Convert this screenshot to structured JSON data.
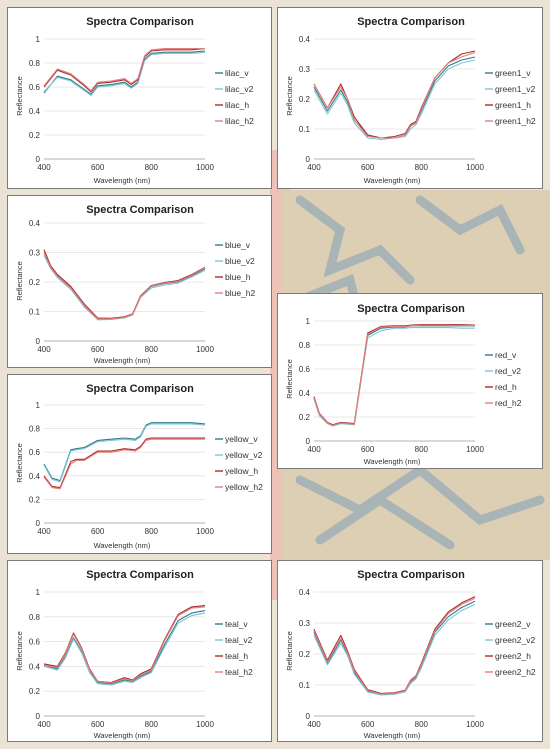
{
  "colors": {
    "v": "#2c7b8a",
    "v2": "#7fc4d8",
    "h": "#b02a2a",
    "h2": "#e0807a",
    "grid": "#e2e2e2",
    "axis": "#9a9a9a"
  },
  "chart_data": [
    {
      "type": "line",
      "title": "Spectra Comparison",
      "xlabel": "Wavelength (nm)",
      "ylabel": "Reflectance",
      "xlim": [
        400,
        1000
      ],
      "ylim": [
        0,
        1
      ],
      "xticks": [
        "400",
        "600",
        "800",
        "1000"
      ],
      "yticks": [
        "0",
        "0.2",
        "0.4",
        "0.6",
        "0.8",
        "1"
      ],
      "grid": true,
      "legend_position": "right",
      "x": [
        400,
        450,
        500,
        550,
        575,
        600,
        650,
        700,
        725,
        750,
        775,
        800,
        850,
        900,
        950,
        1000
      ],
      "series": [
        {
          "name": "lilac_v",
          "values": [
            0.55,
            0.69,
            0.66,
            0.58,
            0.54,
            0.61,
            0.62,
            0.64,
            0.6,
            0.64,
            0.83,
            0.88,
            0.89,
            0.89,
            0.89,
            0.9
          ]
        },
        {
          "name": "lilac_v2",
          "values": [
            0.56,
            0.68,
            0.65,
            0.57,
            0.53,
            0.6,
            0.61,
            0.63,
            0.59,
            0.63,
            0.82,
            0.87,
            0.88,
            0.88,
            0.88,
            0.89
          ]
        },
        {
          "name": "lilac_h",
          "values": [
            0.6,
            0.74,
            0.7,
            0.61,
            0.56,
            0.63,
            0.64,
            0.66,
            0.62,
            0.66,
            0.85,
            0.9,
            0.91,
            0.91,
            0.91,
            0.92
          ]
        },
        {
          "name": "lilac_h2",
          "values": [
            0.61,
            0.75,
            0.71,
            0.62,
            0.57,
            0.64,
            0.65,
            0.67,
            0.63,
            0.67,
            0.86,
            0.91,
            0.92,
            0.92,
            0.92,
            0.92
          ]
        }
      ]
    },
    {
      "type": "line",
      "title": "Spectra Comparison",
      "xlabel": "Wavelength (nm)",
      "ylabel": "Reflectance",
      "xlim": [
        400,
        1000
      ],
      "ylim": [
        0,
        0.4
      ],
      "xticks": [
        "400",
        "600",
        "800",
        "1000"
      ],
      "yticks": [
        "0",
        "0.1",
        "0.2",
        "0.3",
        "0.4"
      ],
      "grid": true,
      "legend_position": "right",
      "x": [
        400,
        450,
        500,
        525,
        550,
        600,
        650,
        700,
        740,
        760,
        780,
        800,
        850,
        900,
        950,
        1000
      ],
      "series": [
        {
          "name": "green1_v",
          "values": [
            0.24,
            0.16,
            0.23,
            0.19,
            0.13,
            0.08,
            0.07,
            0.07,
            0.08,
            0.11,
            0.12,
            0.16,
            0.26,
            0.31,
            0.33,
            0.34
          ]
        },
        {
          "name": "green1_v2",
          "values": [
            0.23,
            0.15,
            0.22,
            0.18,
            0.12,
            0.07,
            0.065,
            0.07,
            0.075,
            0.1,
            0.115,
            0.15,
            0.25,
            0.3,
            0.32,
            0.33
          ]
        },
        {
          "name": "green1_h",
          "values": [
            0.25,
            0.17,
            0.25,
            0.2,
            0.14,
            0.08,
            0.07,
            0.075,
            0.085,
            0.115,
            0.125,
            0.17,
            0.27,
            0.32,
            0.35,
            0.36
          ]
        },
        {
          "name": "green1_h2",
          "values": [
            0.25,
            0.17,
            0.24,
            0.2,
            0.13,
            0.075,
            0.07,
            0.07,
            0.08,
            0.11,
            0.12,
            0.165,
            0.27,
            0.32,
            0.34,
            0.355
          ]
        }
      ]
    },
    {
      "type": "line",
      "title": "Spectra Comparison",
      "xlabel": "Wavelength (nm)",
      "ylabel": "Reflectance",
      "xlim": [
        400,
        1000
      ],
      "ylim": [
        0,
        0.4
      ],
      "xticks": [
        "400",
        "600",
        "800",
        "1000"
      ],
      "yticks": [
        "0",
        "0.1",
        "0.2",
        "0.3",
        "0.4"
      ],
      "grid": true,
      "legend_position": "right",
      "x": [
        400,
        425,
        450,
        500,
        550,
        600,
        650,
        700,
        730,
        760,
        800,
        850,
        900,
        950,
        1000
      ],
      "series": [
        {
          "name": "blue_v",
          "values": [
            0.3,
            0.25,
            0.22,
            0.18,
            0.12,
            0.075,
            0.075,
            0.08,
            0.09,
            0.15,
            0.185,
            0.195,
            0.2,
            0.22,
            0.245
          ]
        },
        {
          "name": "blue_v2",
          "values": [
            0.29,
            0.245,
            0.215,
            0.175,
            0.115,
            0.072,
            0.073,
            0.078,
            0.088,
            0.148,
            0.18,
            0.19,
            0.197,
            0.217,
            0.24
          ]
        },
        {
          "name": "blue_h",
          "values": [
            0.31,
            0.255,
            0.225,
            0.185,
            0.125,
            0.078,
            0.077,
            0.082,
            0.092,
            0.153,
            0.188,
            0.198,
            0.205,
            0.225,
            0.25
          ]
        },
        {
          "name": "blue_h2",
          "values": [
            0.3,
            0.25,
            0.22,
            0.18,
            0.12,
            0.075,
            0.075,
            0.08,
            0.09,
            0.15,
            0.186,
            0.196,
            0.202,
            0.222,
            0.248
          ]
        }
      ]
    },
    {
      "type": "line",
      "title": "Spectra Comparison",
      "xlabel": "Wavelength (nm)",
      "ylabel": "Reflectance",
      "xlim": [
        400,
        1000
      ],
      "ylim": [
        0,
        1
      ],
      "xticks": [
        "400",
        "600",
        "800",
        "1000"
      ],
      "yticks": [
        "0",
        "0.2",
        "0.4",
        "0.6",
        "0.8",
        "1"
      ],
      "grid": true,
      "legend_position": "right",
      "x": [
        400,
        420,
        450,
        470,
        500,
        550,
        600,
        650,
        700,
        740,
        760,
        800,
        850,
        900,
        950,
        1000
      ],
      "series": [
        {
          "name": "red_v",
          "values": [
            0.36,
            0.22,
            0.15,
            0.13,
            0.15,
            0.14,
            0.88,
            0.94,
            0.95,
            0.95,
            0.96,
            0.96,
            0.96,
            0.96,
            0.96,
            0.96
          ]
        },
        {
          "name": "red_v2",
          "values": [
            0.35,
            0.21,
            0.145,
            0.125,
            0.145,
            0.135,
            0.86,
            0.92,
            0.94,
            0.94,
            0.945,
            0.945,
            0.945,
            0.945,
            0.94,
            0.94
          ]
        },
        {
          "name": "red_h",
          "values": [
            0.37,
            0.23,
            0.155,
            0.135,
            0.155,
            0.145,
            0.9,
            0.955,
            0.96,
            0.96,
            0.965,
            0.97,
            0.97,
            0.97,
            0.97,
            0.965
          ]
        },
        {
          "name": "red_h2",
          "values": [
            0.36,
            0.225,
            0.15,
            0.13,
            0.15,
            0.14,
            0.89,
            0.95,
            0.955,
            0.955,
            0.96,
            0.965,
            0.965,
            0.965,
            0.965,
            0.96
          ]
        }
      ]
    },
    {
      "type": "line",
      "title": "Spectra Comparison",
      "xlabel": "Wavelength (nm)",
      "ylabel": "Reflectance",
      "xlim": [
        400,
        1000
      ],
      "ylim": [
        0,
        1
      ],
      "xticks": [
        "400",
        "600",
        "800",
        "1000"
      ],
      "yticks": [
        "0",
        "0.2",
        "0.4",
        "0.6",
        "0.8",
        "1"
      ],
      "grid": true,
      "legend_position": "right",
      "x": [
        400,
        430,
        460,
        500,
        520,
        550,
        600,
        650,
        700,
        740,
        760,
        780,
        800,
        850,
        900,
        950,
        1000
      ],
      "series": [
        {
          "name": "yellow_v",
          "values": [
            0.5,
            0.38,
            0.36,
            0.62,
            0.63,
            0.64,
            0.7,
            0.71,
            0.72,
            0.71,
            0.74,
            0.83,
            0.85,
            0.85,
            0.85,
            0.85,
            0.84
          ]
        },
        {
          "name": "yellow_v2",
          "values": [
            0.49,
            0.37,
            0.35,
            0.61,
            0.62,
            0.63,
            0.69,
            0.7,
            0.71,
            0.7,
            0.73,
            0.82,
            0.84,
            0.84,
            0.84,
            0.84,
            0.83
          ]
        },
        {
          "name": "yellow_h",
          "values": [
            0.4,
            0.31,
            0.3,
            0.52,
            0.54,
            0.54,
            0.61,
            0.61,
            0.63,
            0.62,
            0.65,
            0.71,
            0.72,
            0.72,
            0.72,
            0.72,
            0.72
          ]
        },
        {
          "name": "yellow_h2",
          "values": [
            0.39,
            0.3,
            0.29,
            0.5,
            0.53,
            0.53,
            0.6,
            0.6,
            0.62,
            0.61,
            0.64,
            0.7,
            0.71,
            0.71,
            0.71,
            0.71,
            0.71
          ]
        }
      ]
    },
    {
      "type": "line",
      "title": "Spectra Comparison",
      "xlabel": "Wavelength (nm)",
      "ylabel": "Reflectance",
      "xlim": [
        400,
        1000
      ],
      "ylim": [
        0,
        1
      ],
      "xticks": [
        "400",
        "600",
        "800",
        "1000"
      ],
      "yticks": [
        "0",
        "0.2",
        "0.4",
        "0.6",
        "0.8",
        "1"
      ],
      "grid": true,
      "legend_position": "right",
      "x": [
        400,
        450,
        480,
        510,
        540,
        570,
        600,
        650,
        700,
        730,
        760,
        800,
        850,
        900,
        950,
        1000
      ],
      "series": [
        {
          "name": "teal_v",
          "values": [
            0.41,
            0.38,
            0.48,
            0.63,
            0.52,
            0.36,
            0.27,
            0.26,
            0.29,
            0.28,
            0.32,
            0.36,
            0.58,
            0.77,
            0.83,
            0.85
          ]
        },
        {
          "name": "teal_v2",
          "values": [
            0.4,
            0.37,
            0.47,
            0.62,
            0.51,
            0.35,
            0.26,
            0.25,
            0.28,
            0.27,
            0.31,
            0.35,
            0.56,
            0.75,
            0.81,
            0.83
          ]
        },
        {
          "name": "teal_h",
          "values": [
            0.42,
            0.4,
            0.51,
            0.67,
            0.55,
            0.38,
            0.28,
            0.27,
            0.31,
            0.29,
            0.34,
            0.38,
            0.62,
            0.82,
            0.88,
            0.89
          ]
        },
        {
          "name": "teal_h2",
          "values": [
            0.41,
            0.39,
            0.5,
            0.66,
            0.54,
            0.37,
            0.28,
            0.265,
            0.3,
            0.285,
            0.33,
            0.37,
            0.61,
            0.81,
            0.87,
            0.88
          ]
        }
      ]
    },
    {
      "type": "line",
      "title": "Spectra Comparison",
      "xlabel": "Wavelength (nm)",
      "ylabel": "Reflectance",
      "xlim": [
        400,
        1000
      ],
      "ylim": [
        0,
        0.4
      ],
      "xticks": [
        "400",
        "600",
        "800",
        "1000"
      ],
      "yticks": [
        "0",
        "0.1",
        "0.2",
        "0.3",
        "0.4"
      ],
      "grid": true,
      "legend_position": "right",
      "x": [
        400,
        450,
        500,
        525,
        550,
        600,
        650,
        700,
        740,
        760,
        780,
        800,
        850,
        900,
        950,
        1000
      ],
      "series": [
        {
          "name": "green2_v",
          "values": [
            0.27,
            0.17,
            0.245,
            0.2,
            0.14,
            0.08,
            0.07,
            0.072,
            0.08,
            0.11,
            0.125,
            0.16,
            0.27,
            0.32,
            0.35,
            0.37
          ]
        },
        {
          "name": "green2_v2",
          "values": [
            0.26,
            0.165,
            0.235,
            0.195,
            0.135,
            0.077,
            0.068,
            0.07,
            0.078,
            0.105,
            0.12,
            0.155,
            0.26,
            0.31,
            0.34,
            0.36
          ]
        },
        {
          "name": "green2_h",
          "values": [
            0.28,
            0.18,
            0.26,
            0.21,
            0.15,
            0.085,
            0.073,
            0.075,
            0.083,
            0.115,
            0.13,
            0.17,
            0.28,
            0.335,
            0.365,
            0.385
          ]
        },
        {
          "name": "green2_h2",
          "values": [
            0.275,
            0.175,
            0.25,
            0.205,
            0.145,
            0.082,
            0.071,
            0.073,
            0.081,
            0.112,
            0.128,
            0.165,
            0.275,
            0.33,
            0.36,
            0.38
          ]
        }
      ]
    }
  ]
}
